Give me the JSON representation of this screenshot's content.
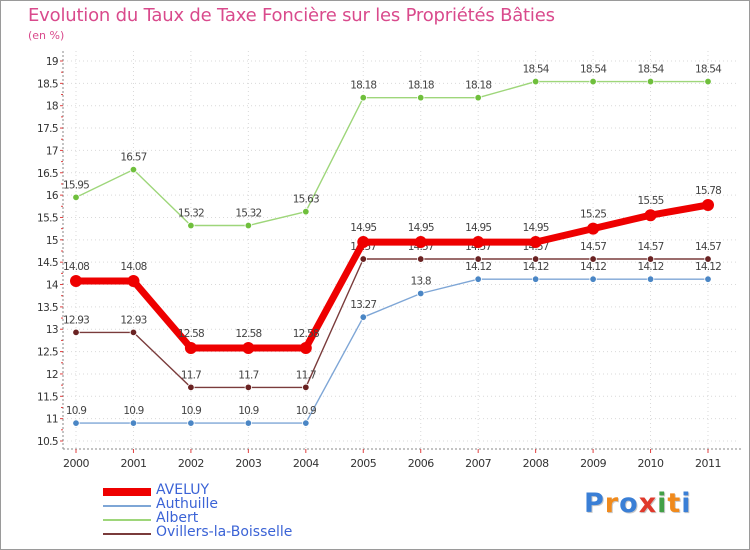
{
  "title": "Evolution du Taux de Taxe Foncière sur les Propriétés Bâties",
  "unit_label": "(en %)",
  "logo": {
    "letters": [
      "P",
      "r",
      "o",
      "x",
      "i",
      "t",
      "i"
    ],
    "colors": [
      "#3a7fd6",
      "#f08a1c",
      "#3a7fd6",
      "#e0392b",
      "#43a047",
      "#f08a1c",
      "#3a7fd6"
    ]
  },
  "chart_data": {
    "type": "line",
    "title": "Evolution du Taux de Taxe Foncière sur les Propriétés Bâties",
    "ylabel": "(en %)",
    "xlabel": "",
    "ylim": [
      10.5,
      19
    ],
    "yticks": [
      "10.5",
      "11",
      "11.5",
      "12",
      "12.5",
      "13",
      "13.5",
      "14",
      "14.5",
      "15",
      "15.5",
      "16",
      "16.5",
      "17",
      "17.5",
      "18",
      "18.5",
      "19"
    ],
    "categories": [
      "2000",
      "2001",
      "2002",
      "2003",
      "2004",
      "2005",
      "2006",
      "2007",
      "2008",
      "2009",
      "2010",
      "2011"
    ],
    "series": [
      {
        "name": "Albert",
        "color": "#9ed67a",
        "marker": "#6fbf3c",
        "width": 1.4,
        "r": 3.3,
        "values": [
          15.95,
          16.57,
          15.32,
          15.32,
          15.63,
          18.18,
          18.18,
          18.18,
          18.54,
          18.54,
          18.54,
          18.54
        ],
        "labels": [
          "15.95",
          "16.57",
          "15.32",
          "15.32",
          "15.63",
          "18.18",
          "18.18",
          "18.18",
          "18.54",
          "18.54",
          "18.54",
          "18.54"
        ]
      },
      {
        "name": "Authuille",
        "color": "#7ea6d6",
        "marker": "#4a86c5",
        "width": 1.4,
        "r": 3.3,
        "values": [
          10.9,
          10.9,
          10.9,
          10.9,
          10.9,
          13.27,
          13.8,
          14.12,
          14.12,
          14.12,
          14.12,
          14.12
        ],
        "labels": [
          "10.9",
          "10.9",
          "10.9",
          "10.9",
          "10.9",
          "13.27",
          "13.8",
          "14.12",
          "14.12",
          "14.12",
          "14.12",
          "14.12"
        ]
      },
      {
        "name": "Ovillers-la-Boisselle",
        "color": "#7a3b3b",
        "marker": "#6a2222",
        "width": 1.4,
        "r": 3.3,
        "values": [
          12.93,
          12.93,
          11.7,
          11.7,
          11.7,
          14.57,
          14.57,
          14.57,
          14.57,
          14.57,
          14.57,
          14.57
        ],
        "labels": [
          "12.93",
          "12.93",
          "11.7",
          "11.7",
          "11.7",
          "14.57",
          "14.57",
          "14.57",
          "14.57",
          "14.57",
          "14.57",
          "14.57"
        ]
      },
      {
        "name": "AVELUY",
        "color": "#ee0000",
        "marker": "#ee0000",
        "width": 7,
        "r": 6,
        "values": [
          14.08,
          14.08,
          12.58,
          12.58,
          12.58,
          14.95,
          14.95,
          14.95,
          14.95,
          15.25,
          15.55,
          15.78
        ],
        "labels": [
          "14.08",
          "14.08",
          "12.58",
          "12.58",
          "12.58",
          "14.95",
          "14.95",
          "14.95",
          "14.95",
          "15.25",
          "15.55",
          "15.78"
        ]
      }
    ],
    "legend_order": [
      "AVELUY",
      "Authuille",
      "Albert",
      "Ovillers-la-Boisselle"
    ],
    "legend_position": "bottom-left"
  }
}
